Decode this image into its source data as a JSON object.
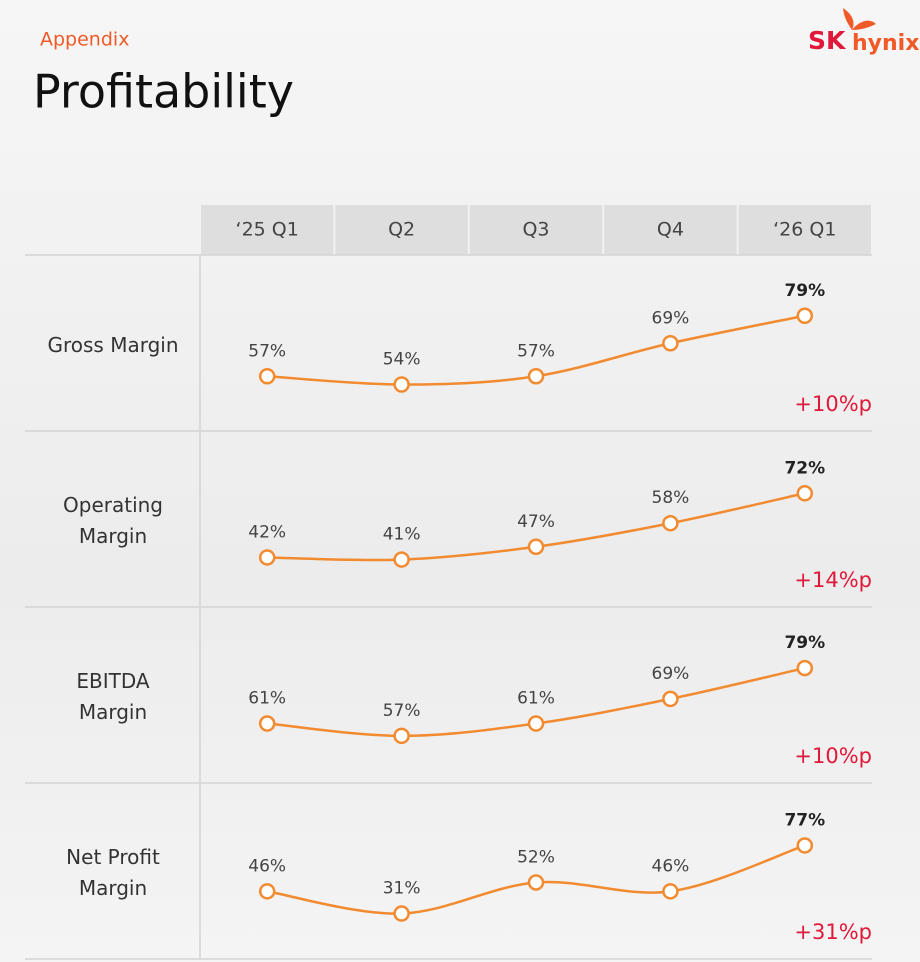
{
  "header": {
    "section": "Appendix",
    "title": "Profitability",
    "logo_sk": "SK",
    "logo_hynix": "hynix"
  },
  "columns": [
    "‘25 Q1",
    "Q2",
    "Q3",
    "Q4",
    "‘26 Q1"
  ],
  "chart_data": [
    {
      "type": "line",
      "title": "Gross Margin",
      "values": [
        57,
        54,
        57,
        69,
        79
      ],
      "value_labels": [
        "57%",
        "54%",
        "57%",
        "69%",
        "79%"
      ],
      "ylim": [
        52,
        80
      ],
      "color": "#f28a30",
      "annotation": "+10%p"
    },
    {
      "type": "line",
      "title": "Operating\nMargin",
      "values": [
        42,
        41,
        47,
        58,
        72
      ],
      "value_labels": [
        "42%",
        "41%",
        "47%",
        "58%",
        "72%"
      ],
      "ylim": [
        38,
        74
      ],
      "color": "#f28a30",
      "annotation": "+14%p"
    },
    {
      "type": "line",
      "title": "EBITDA\nMargin",
      "values": [
        61,
        57,
        61,
        69,
        79
      ],
      "value_labels": [
        "61%",
        "57%",
        "61%",
        "69%",
        "79%"
      ],
      "ylim": [
        55,
        80
      ],
      "color": "#f28a30",
      "annotation": "+10%p"
    },
    {
      "type": "line",
      "title": "Net Profit\nMargin",
      "values": [
        46,
        31,
        52,
        46,
        77
      ],
      "value_labels": [
        "46%",
        "31%",
        "52%",
        "46%",
        "77%"
      ],
      "ylim": [
        28,
        80
      ],
      "color": "#f28a30",
      "annotation": "+31%p"
    }
  ]
}
